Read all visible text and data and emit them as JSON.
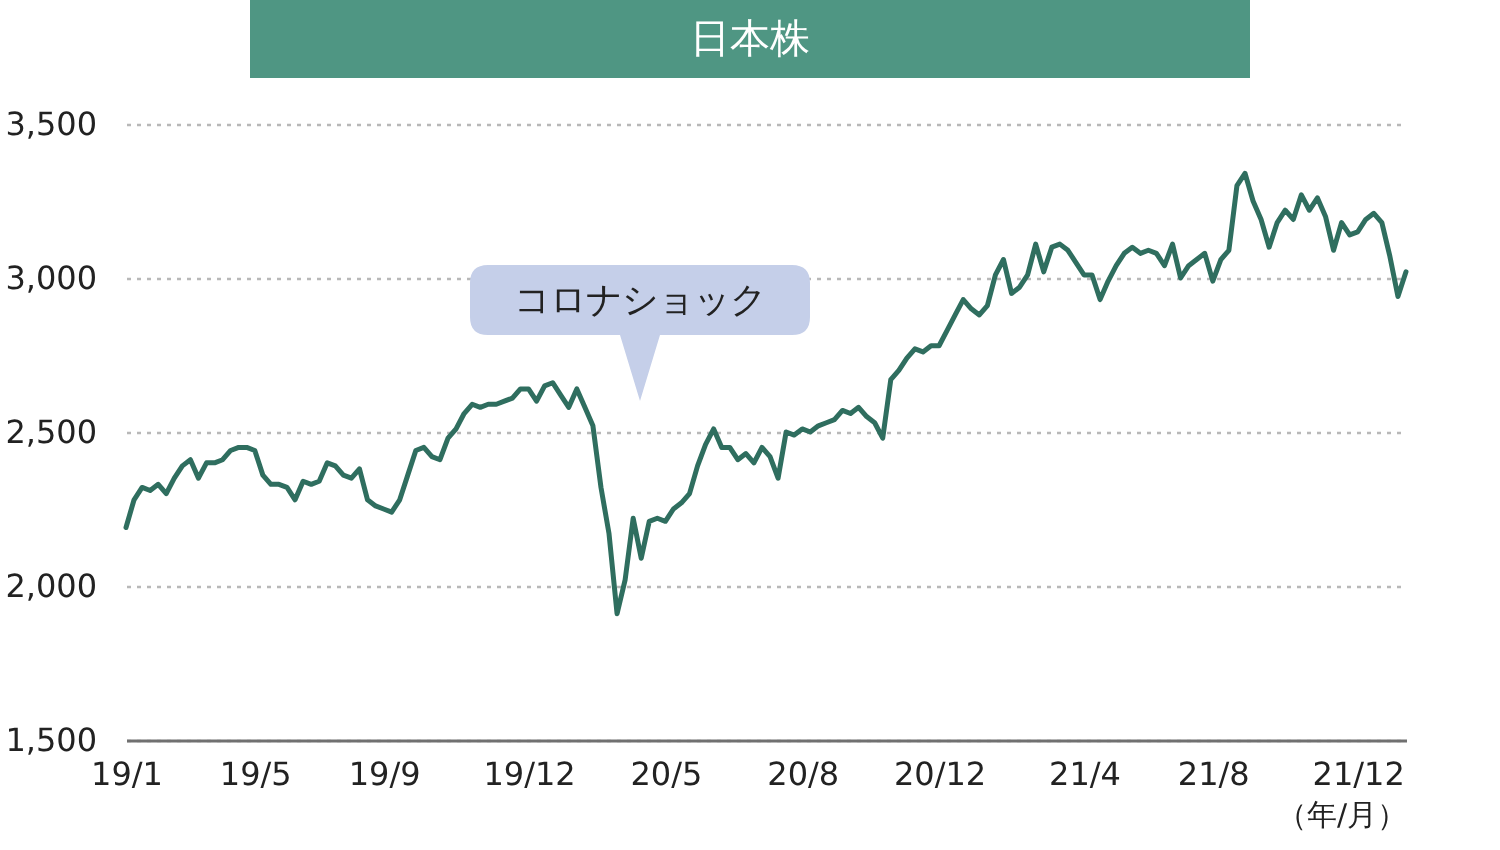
{
  "chart_data": {
    "type": "line",
    "title": "日本株",
    "xlabel": "（年/月）",
    "annotations": [
      "コロナショック"
    ],
    "categories": [
      "19/1",
      null,
      null,
      null,
      null,
      null,
      null,
      null,
      null,
      null,
      null,
      null,
      null,
      null,
      null,
      null,
      "19/5",
      null,
      null,
      null,
      null,
      null,
      null,
      null,
      null,
      null,
      null,
      null,
      null,
      null,
      null,
      null,
      "19/9",
      null,
      null,
      null,
      null,
      null,
      null,
      null,
      null,
      null,
      null,
      null,
      null,
      null,
      null,
      null,
      null,
      null,
      "19/12",
      null,
      null,
      null,
      null,
      null,
      null,
      null,
      null,
      null,
      null,
      null,
      null,
      null,
      null,
      null,
      null,
      "20/5",
      null,
      null,
      null,
      null,
      null,
      null,
      null,
      null,
      null,
      null,
      null,
      null,
      null,
      null,
      null,
      null,
      "20/8",
      null,
      null,
      null,
      null,
      null,
      null,
      null,
      null,
      null,
      null,
      null,
      null,
      null,
      null,
      null,
      null,
      "20/12",
      null,
      null,
      null,
      null,
      null,
      null,
      null,
      null,
      null,
      null,
      null,
      null,
      null,
      null,
      null,
      null,
      null,
      "21/4",
      null,
      null,
      null,
      null,
      null,
      null,
      null,
      null,
      null,
      null,
      null,
      null,
      null,
      null,
      null,
      "21/8",
      null,
      null,
      null,
      null,
      null,
      null,
      null,
      null,
      null,
      null,
      null,
      null,
      null,
      null,
      null,
      null,
      null,
      "21/12",
      null,
      null,
      null,
      null,
      null,
      null
    ],
    "values": [
      2190,
      2280,
      2320,
      2310,
      2330,
      2300,
      2350,
      2390,
      2410,
      2350,
      2400,
      2400,
      2410,
      2440,
      2450,
      2450,
      2440,
      2360,
      2330,
      2330,
      2320,
      2280,
      2340,
      2330,
      2340,
      2400,
      2390,
      2360,
      2350,
      2380,
      2280,
      2260,
      2250,
      2240,
      2280,
      2360,
      2440,
      2450,
      2420,
      2410,
      2480,
      2510,
      2560,
      2590,
      2580,
      2590,
      2590,
      2600,
      2610,
      2640,
      2640,
      2600,
      2650,
      2660,
      2620,
      2580,
      2640,
      2580,
      2520,
      2320,
      2170,
      1910,
      2020,
      2220,
      2090,
      2210,
      2220,
      2210,
      2250,
      2270,
      2300,
      2390,
      2460,
      2510,
      2450,
      2450,
      2410,
      2430,
      2400,
      2450,
      2420,
      2350,
      2500,
      2490,
      2510,
      2500,
      2520,
      2530,
      2540,
      2570,
      2560,
      2580,
      2550,
      2530,
      2480,
      2670,
      2700,
      2740,
      2770,
      2760,
      2780,
      2780,
      2830,
      2880,
      2930,
      2900,
      2880,
      2910,
      3010,
      3060,
      2950,
      2970,
      3010,
      3110,
      3020,
      3100,
      3110,
      3090,
      3050,
      3010,
      3010,
      2930,
      2990,
      3040,
      3080,
      3100,
      3080,
      3090,
      3080,
      3040,
      3110,
      3000,
      3040,
      3060,
      3080,
      2990,
      3060,
      3090,
      3300,
      3340,
      3250,
      3190,
      3100,
      3180,
      3220,
      3190,
      3270,
      3220,
      3260,
      3200,
      3090,
      3180,
      3140,
      3150,
      3190,
      3210,
      3180,
      3070,
      2940,
      3020
    ],
    "color": "#2f6e5f",
    "ylim": [
      1500,
      3500
    ],
    "yticks": [
      {
        "value": 1500,
        "label": "1,500"
      },
      {
        "value": 2000,
        "label": "2,000"
      },
      {
        "value": 2500,
        "label": "2,500"
      },
      {
        "value": 3000,
        "label": "3,000"
      },
      {
        "value": 3500,
        "label": "3,500"
      }
    ],
    "grid": "y"
  }
}
